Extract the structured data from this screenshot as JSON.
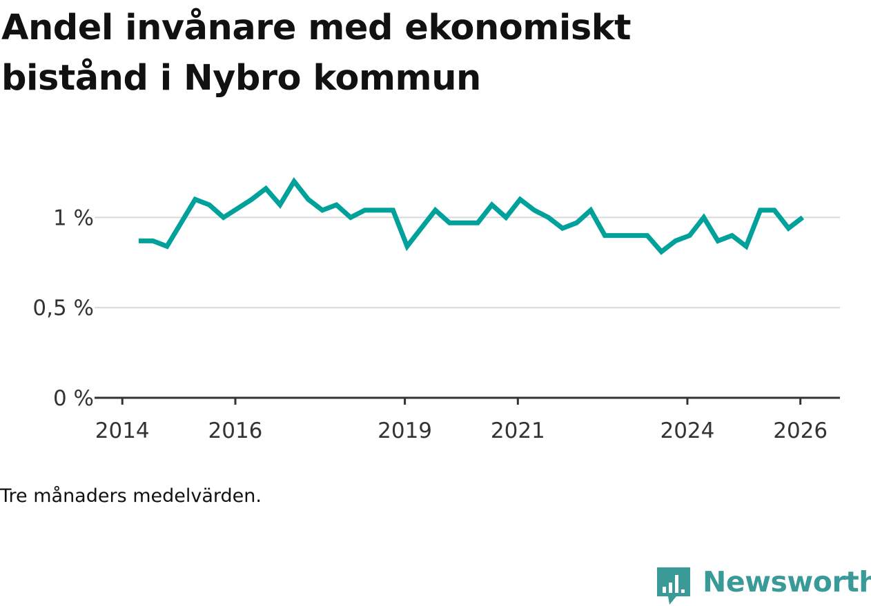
{
  "title": "Andel invånare med ekonomiskt bistånd i Nybro kommun",
  "caption": "Tre månaders medelvärden.",
  "brand": {
    "name": "Newsworthy",
    "logo_icon": "newsworthy-bar-chart-bubble-icon",
    "color": "#3a9a98"
  },
  "colors": {
    "line": "#00a19a",
    "grid": "#d9d9d9",
    "axis": "#333333"
  },
  "chart_data": {
    "type": "line",
    "title": "Andel invånare med ekonomiskt bistånd i Nybro kommun",
    "xlabel": "",
    "ylabel": "",
    "xlim": [
      2013.875,
      2026.7
    ],
    "ylim": [
      0,
      1.25
    ],
    "grid": true,
    "legend": "none",
    "y_ticks": [
      {
        "value": 0,
        "label": "0 %"
      },
      {
        "value": 0.5,
        "label": "0,5 %"
      },
      {
        "value": 1,
        "label": "1 %"
      }
    ],
    "x_ticks": [
      {
        "value": 2014,
        "label": "2014"
      },
      {
        "value": 2016,
        "label": "2016"
      },
      {
        "value": 2019,
        "label": "2019"
      },
      {
        "value": 2021,
        "label": "2021"
      },
      {
        "value": 2024,
        "label": "2024"
      },
      {
        "value": 2026,
        "label": "2026"
      }
    ],
    "series": [
      {
        "name": "Andel invånare med ekonomiskt bistånd",
        "points": [
          [
            2014.29,
            0.87
          ],
          [
            2014.54,
            0.87
          ],
          [
            2014.79,
            0.84
          ],
          [
            2015.04,
            0.97
          ],
          [
            2015.29,
            1.1
          ],
          [
            2015.54,
            1.07
          ],
          [
            2015.79,
            1.0
          ],
          [
            2016.04,
            1.05
          ],
          [
            2016.29,
            1.1
          ],
          [
            2016.54,
            1.16
          ],
          [
            2016.79,
            1.07
          ],
          [
            2017.04,
            1.2
          ],
          [
            2017.29,
            1.1
          ],
          [
            2017.54,
            1.04
          ],
          [
            2017.79,
            1.07
          ],
          [
            2018.04,
            1.0
          ],
          [
            2018.29,
            1.04
          ],
          [
            2018.54,
            1.04
          ],
          [
            2018.79,
            1.04
          ],
          [
            2019.04,
            0.84
          ],
          [
            2019.29,
            0.94
          ],
          [
            2019.54,
            1.04
          ],
          [
            2019.79,
            0.97
          ],
          [
            2020.04,
            0.97
          ],
          [
            2020.29,
            0.97
          ],
          [
            2020.54,
            1.07
          ],
          [
            2020.79,
            1.0
          ],
          [
            2021.04,
            1.1
          ],
          [
            2021.29,
            1.04
          ],
          [
            2021.54,
            1.0
          ],
          [
            2021.79,
            0.94
          ],
          [
            2022.04,
            0.97
          ],
          [
            2022.29,
            1.04
          ],
          [
            2022.54,
            0.9
          ],
          [
            2022.79,
            0.9
          ],
          [
            2023.04,
            0.9
          ],
          [
            2023.29,
            0.9
          ],
          [
            2023.54,
            0.81
          ],
          [
            2023.79,
            0.87
          ],
          [
            2024.04,
            0.9
          ],
          [
            2024.29,
            1.0
          ],
          [
            2024.54,
            0.87
          ],
          [
            2024.79,
            0.9
          ],
          [
            2025.04,
            0.84
          ],
          [
            2025.29,
            1.04
          ],
          [
            2025.54,
            1.04
          ],
          [
            2025.79,
            0.94
          ],
          [
            2026.04,
            1.0
          ]
        ]
      }
    ]
  }
}
